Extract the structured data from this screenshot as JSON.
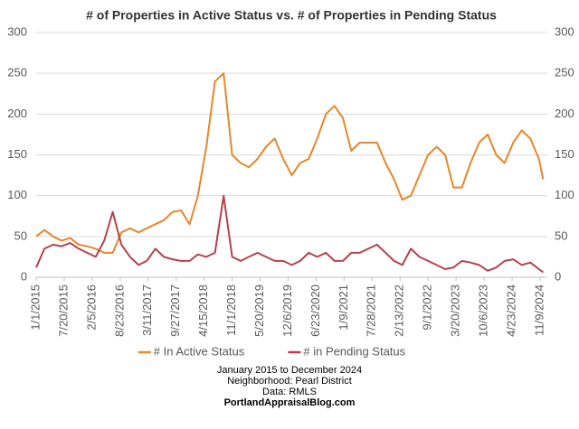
{
  "chart_data": {
    "type": "line",
    "title": "# of Properties in Active Status vs. # of Properties in Pending Status",
    "date_range": "January 2015 to December 2024",
    "neighborhood": "Neighborhood: Pearl District",
    "source": "Data: RMLS",
    "website": "PortlandAppraisalBlog.com",
    "x": [
      "1/1/2015",
      "3/1/2015",
      "5/1/2015",
      "7/1/2015",
      "9/1/2015",
      "11/1/2015",
      "1/1/2016",
      "3/1/2016",
      "5/1/2016",
      "7/1/2016",
      "9/1/2016",
      "11/1/2016",
      "1/1/2017",
      "3/1/2017",
      "5/1/2017",
      "7/1/2017",
      "9/1/2017",
      "11/1/2017",
      "1/1/2018",
      "3/1/2018",
      "5/1/2018",
      "7/1/2018",
      "9/1/2018",
      "11/1/2018",
      "1/1/2019",
      "3/1/2019",
      "5/1/2019",
      "7/1/2019",
      "9/1/2019",
      "11/1/2019",
      "1/1/2020",
      "3/1/2020",
      "5/1/2020",
      "7/1/2020",
      "9/1/2020",
      "11/1/2020",
      "1/1/2021",
      "3/1/2021",
      "5/1/2021",
      "7/1/2021",
      "9/1/2021",
      "11/1/2021",
      "1/1/2022",
      "3/1/2022",
      "5/1/2022",
      "7/1/2022",
      "9/1/2022",
      "11/1/2022",
      "1/1/2023",
      "3/1/2023",
      "5/1/2023",
      "7/1/2023",
      "9/1/2023",
      "11/1/2023",
      "1/1/2024",
      "3/1/2024",
      "5/1/2024",
      "7/1/2024",
      "9/1/2024",
      "11/1/2024",
      "12/1/2024"
    ],
    "series": [
      {
        "name": "# In Active Status",
        "color": "#e8862a",
        "values": [
          50,
          58,
          50,
          45,
          48,
          40,
          38,
          35,
          30,
          30,
          55,
          60,
          55,
          60,
          65,
          70,
          80,
          82,
          65,
          100,
          160,
          240,
          250,
          150,
          140,
          135,
          145,
          160,
          170,
          145,
          125,
          140,
          145,
          170,
          200,
          210,
          195,
          155,
          165,
          165,
          165,
          140,
          120,
          95,
          100,
          125,
          150,
          160,
          150,
          110,
          110,
          140,
          165,
          175,
          150,
          140,
          165,
          180,
          170,
          145,
          120
        ]
      },
      {
        "name": "# in Pending Status",
        "color": "#b5424a",
        "values": [
          12,
          35,
          40,
          38,
          42,
          35,
          30,
          25,
          45,
          80,
          40,
          25,
          15,
          20,
          35,
          25,
          22,
          20,
          20,
          28,
          25,
          30,
          100,
          25,
          20,
          25,
          30,
          25,
          20,
          20,
          15,
          20,
          30,
          25,
          30,
          20,
          20,
          30,
          30,
          35,
          40,
          30,
          20,
          15,
          35,
          25,
          20,
          15,
          10,
          12,
          20,
          18,
          15,
          8,
          12,
          20,
          22,
          15,
          18,
          10,
          6
        ]
      }
    ],
    "xlim": [
      "1/1/2015",
      "12/31/2024"
    ],
    "xticks": [
      "1/1/2015",
      "7/20/2015",
      "2/5/2016",
      "8/23/2016",
      "3/11/2017",
      "9/27/2017",
      "4/15/2018",
      "11/1/2018",
      "5/20/2019",
      "12/6/2019",
      "6/23/2020",
      "1/9/2021",
      "7/28/2021",
      "2/13/2022",
      "9/1/2022",
      "3/20/2023",
      "10/6/2023",
      "4/23/2024",
      "11/9/2024"
    ],
    "ylim": [
      0,
      300
    ],
    "yticks": [
      0,
      50,
      100,
      150,
      200,
      250,
      300
    ],
    "y2lim": [
      0,
      300
    ],
    "y2ticks": [
      0,
      50,
      100,
      150,
      200,
      250,
      300
    ],
    "grid": true,
    "legend": "bottom"
  }
}
